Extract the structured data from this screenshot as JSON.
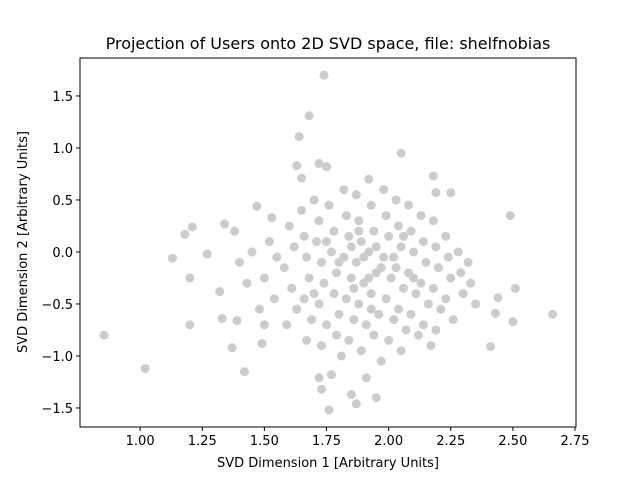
{
  "chart_data": {
    "type": "scatter",
    "title": "Projection of Users onto 2D SVD space, file: shelfnobias",
    "x_label": "SVD Dimension 1 [Arbitrary Units]",
    "y_label": "SVD Dimension 2 [Arbitrary Units]",
    "color": "#cccccc",
    "xlim": [
      0.758,
      2.754
    ],
    "ylim": [
      -1.683,
      1.865
    ],
    "xticks": [
      {
        "value": 1,
        "label": "1.00"
      },
      {
        "value": 1.25,
        "label": "1.25"
      },
      {
        "value": 1.5,
        "label": "1.50"
      },
      {
        "value": 1.75,
        "label": "1.75"
      },
      {
        "value": 2,
        "label": "2.00"
      },
      {
        "value": 2.25,
        "label": "2.25"
      },
      {
        "value": 2.5,
        "label": "2.50"
      },
      {
        "value": 2.75,
        "label": "2.75"
      }
    ],
    "yticks": [
      {
        "value": -1.5,
        "label": "−1.5"
      },
      {
        "value": -1,
        "label": "−1.0"
      },
      {
        "value": -0.5,
        "label": "−0.5"
      },
      {
        "value": 0,
        "label": "0.0"
      },
      {
        "value": 0.5,
        "label": "0.5"
      },
      {
        "value": 1,
        "label": "1.0"
      },
      {
        "value": 1.5,
        "label": "1.5"
      }
    ],
    "x": [
      0.855,
      1.02,
      1.13,
      1.18,
      1.21,
      1.2,
      1.2,
      1.27,
      1.34,
      1.32,
      1.33,
      1.37,
      1.42,
      1.47,
      1.53,
      1.64,
      1.68,
      1.74,
      1.63,
      1.72,
      1.75,
      1.65,
      2.05,
      2.18,
      2.25,
      2.19,
      2.49,
      2.51,
      2.5,
      2.66,
      2.41,
      2.44,
      2.43,
      1.76,
      1.87,
      1.85,
      1.95,
      1.73,
      1.72,
      1.77,
      1.91,
      1.49,
      1.5,
      1.39,
      1.6,
      1.62,
      1.58,
      1.61,
      1.63,
      1.59,
      1.65,
      1.66,
      1.67,
      1.68,
      1.66,
      1.69,
      1.67,
      1.7,
      1.72,
      1.71,
      1.73,
      1.74,
      1.72,
      1.75,
      1.73,
      1.76,
      1.78,
      1.77,
      1.79,
      1.78,
      1.8,
      1.79,
      1.81,
      1.82,
      1.83,
      1.84,
      1.82,
      1.85,
      1.83,
      1.86,
      1.84,
      1.87,
      1.88,
      1.89,
      1.87,
      1.9,
      1.88,
      1.91,
      1.89,
      1.92,
      1.93,
      1.94,
      1.92,
      1.95,
      1.93,
      1.96,
      1.94,
      1.97,
      1.98,
      1.99,
      2.0,
      1.98,
      2.01,
      1.99,
      2.02,
      2.0,
      2.03,
      2.04,
      2.05,
      2.03,
      2.06,
      2.04,
      2.07,
      2.05,
      2.08,
      2.09,
      2.1,
      2.08,
      2.11,
      2.09,
      2.12,
      2.13,
      2.14,
      2.15,
      2.13,
      2.16,
      2.14,
      2.17,
      2.18,
      2.19,
      2.2,
      2.18,
      2.21,
      2.19,
      2.23,
      2.24,
      2.25,
      2.23,
      2.26,
      2.28,
      2.29,
      2.3,
      2.32,
      2.33,
      2.35,
      1.55,
      1.54,
      1.52,
      1.5,
      1.48,
      1.45,
      1.43,
      1.4,
      1.38,
      1.85,
      1.9,
      1.95,
      1.8,
      1.86,
      1.92,
      1.97,
      2.02,
      1.88,
      1.75,
      1.7,
      2.1,
      2.06,
      1.93
    ],
    "y": [
      -0.8,
      -1.12,
      -0.06,
      0.17,
      0.24,
      -0.25,
      -0.7,
      -0.02,
      0.27,
      -0.38,
      -0.64,
      -0.92,
      -1.15,
      0.44,
      0.33,
      1.11,
      1.31,
      1.7,
      0.83,
      0.85,
      0.82,
      0.71,
      0.95,
      0.73,
      0.57,
      0.57,
      0.35,
      -0.35,
      -0.67,
      -0.6,
      -0.91,
      -0.44,
      -0.59,
      -1.52,
      -1.46,
      -1.37,
      -1.4,
      -1.32,
      -1.21,
      -1.18,
      -1.21,
      -0.88,
      -0.7,
      -0.66,
      0.25,
      0.05,
      -0.15,
      -0.35,
      -0.55,
      -0.7,
      0.4,
      0.15,
      -0.05,
      -0.25,
      -0.45,
      -0.65,
      -0.85,
      0.5,
      0.3,
      0.1,
      -0.1,
      -0.3,
      -0.5,
      -0.7,
      -0.9,
      0.45,
      0.2,
      0.0,
      -0.2,
      -0.4,
      -0.6,
      -0.8,
      -1.0,
      0.6,
      0.35,
      0.15,
      -0.05,
      -0.25,
      -0.45,
      -0.65,
      -0.85,
      0.55,
      0.3,
      0.1,
      -0.1,
      -0.3,
      -0.5,
      -0.7,
      -0.95,
      0.7,
      0.45,
      0.2,
      0.0,
      -0.2,
      -0.4,
      -0.6,
      -0.8,
      -1.05,
      0.6,
      0.35,
      0.15,
      -0.05,
      -0.25,
      -0.45,
      -0.65,
      -0.85,
      0.5,
      0.25,
      0.05,
      -0.15,
      -0.35,
      -0.55,
      -0.75,
      -0.95,
      0.45,
      0.2,
      0.0,
      -0.2,
      -0.4,
      -0.6,
      -0.8,
      0.35,
      0.1,
      -0.1,
      -0.3,
      -0.5,
      -0.7,
      -0.9,
      0.3,
      0.05,
      -0.15,
      -0.35,
      -0.55,
      -0.75,
      0.15,
      -0.05,
      -0.25,
      -0.45,
      -0.65,
      0.0,
      -0.2,
      -0.4,
      -0.1,
      -0.3,
      -0.5,
      -0.05,
      -0.45,
      0.1,
      -0.25,
      -0.55,
      0.0,
      -0.3,
      -0.1,
      0.2,
      0.05,
      -0.05,
      0.05,
      -0.1,
      -0.35,
      -0.25,
      -0.15,
      -0.05,
      0.2,
      0.1,
      -0.4,
      -0.25,
      0.15,
      -0.55
    ]
  }
}
